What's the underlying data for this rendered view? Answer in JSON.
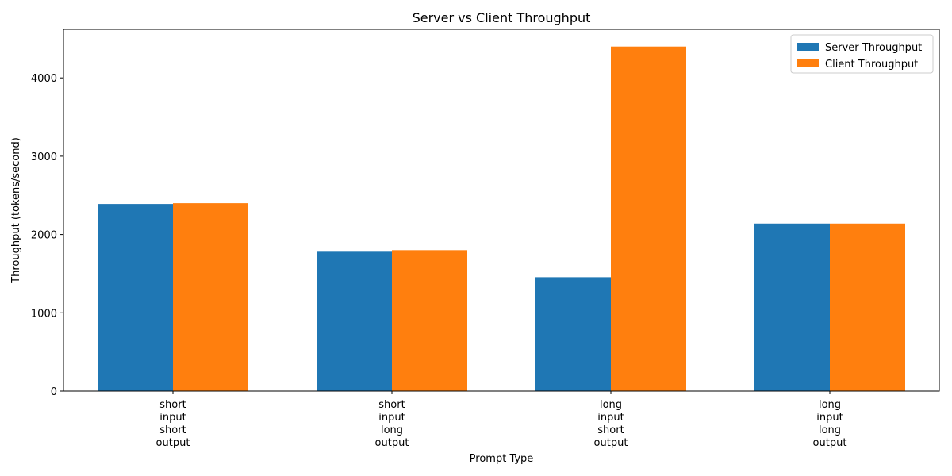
{
  "chart_data": {
    "type": "bar",
    "title": "Server vs Client Throughput",
    "xlabel": "Prompt Type",
    "ylabel": "Throughput (tokens/second)",
    "categories": [
      [
        "short",
        "input",
        "short",
        "output"
      ],
      [
        "short",
        "input",
        "long",
        "output"
      ],
      [
        "long",
        "input",
        "short",
        "output"
      ],
      [
        "long",
        "input",
        "long",
        "output"
      ]
    ],
    "series": [
      {
        "name": "Server Throughput",
        "color": "#1f77b4",
        "values": [
          2390,
          1780,
          1455,
          2140
        ]
      },
      {
        "name": "Client Throughput",
        "color": "#ff7f0e",
        "values": [
          2400,
          1800,
          4400,
          2140
        ]
      }
    ],
    "ylim": [
      0,
      4620
    ],
    "yticks": [
      0,
      1000,
      2000,
      3000,
      4000
    ],
    "grid": false,
    "legend": "top-right"
  }
}
